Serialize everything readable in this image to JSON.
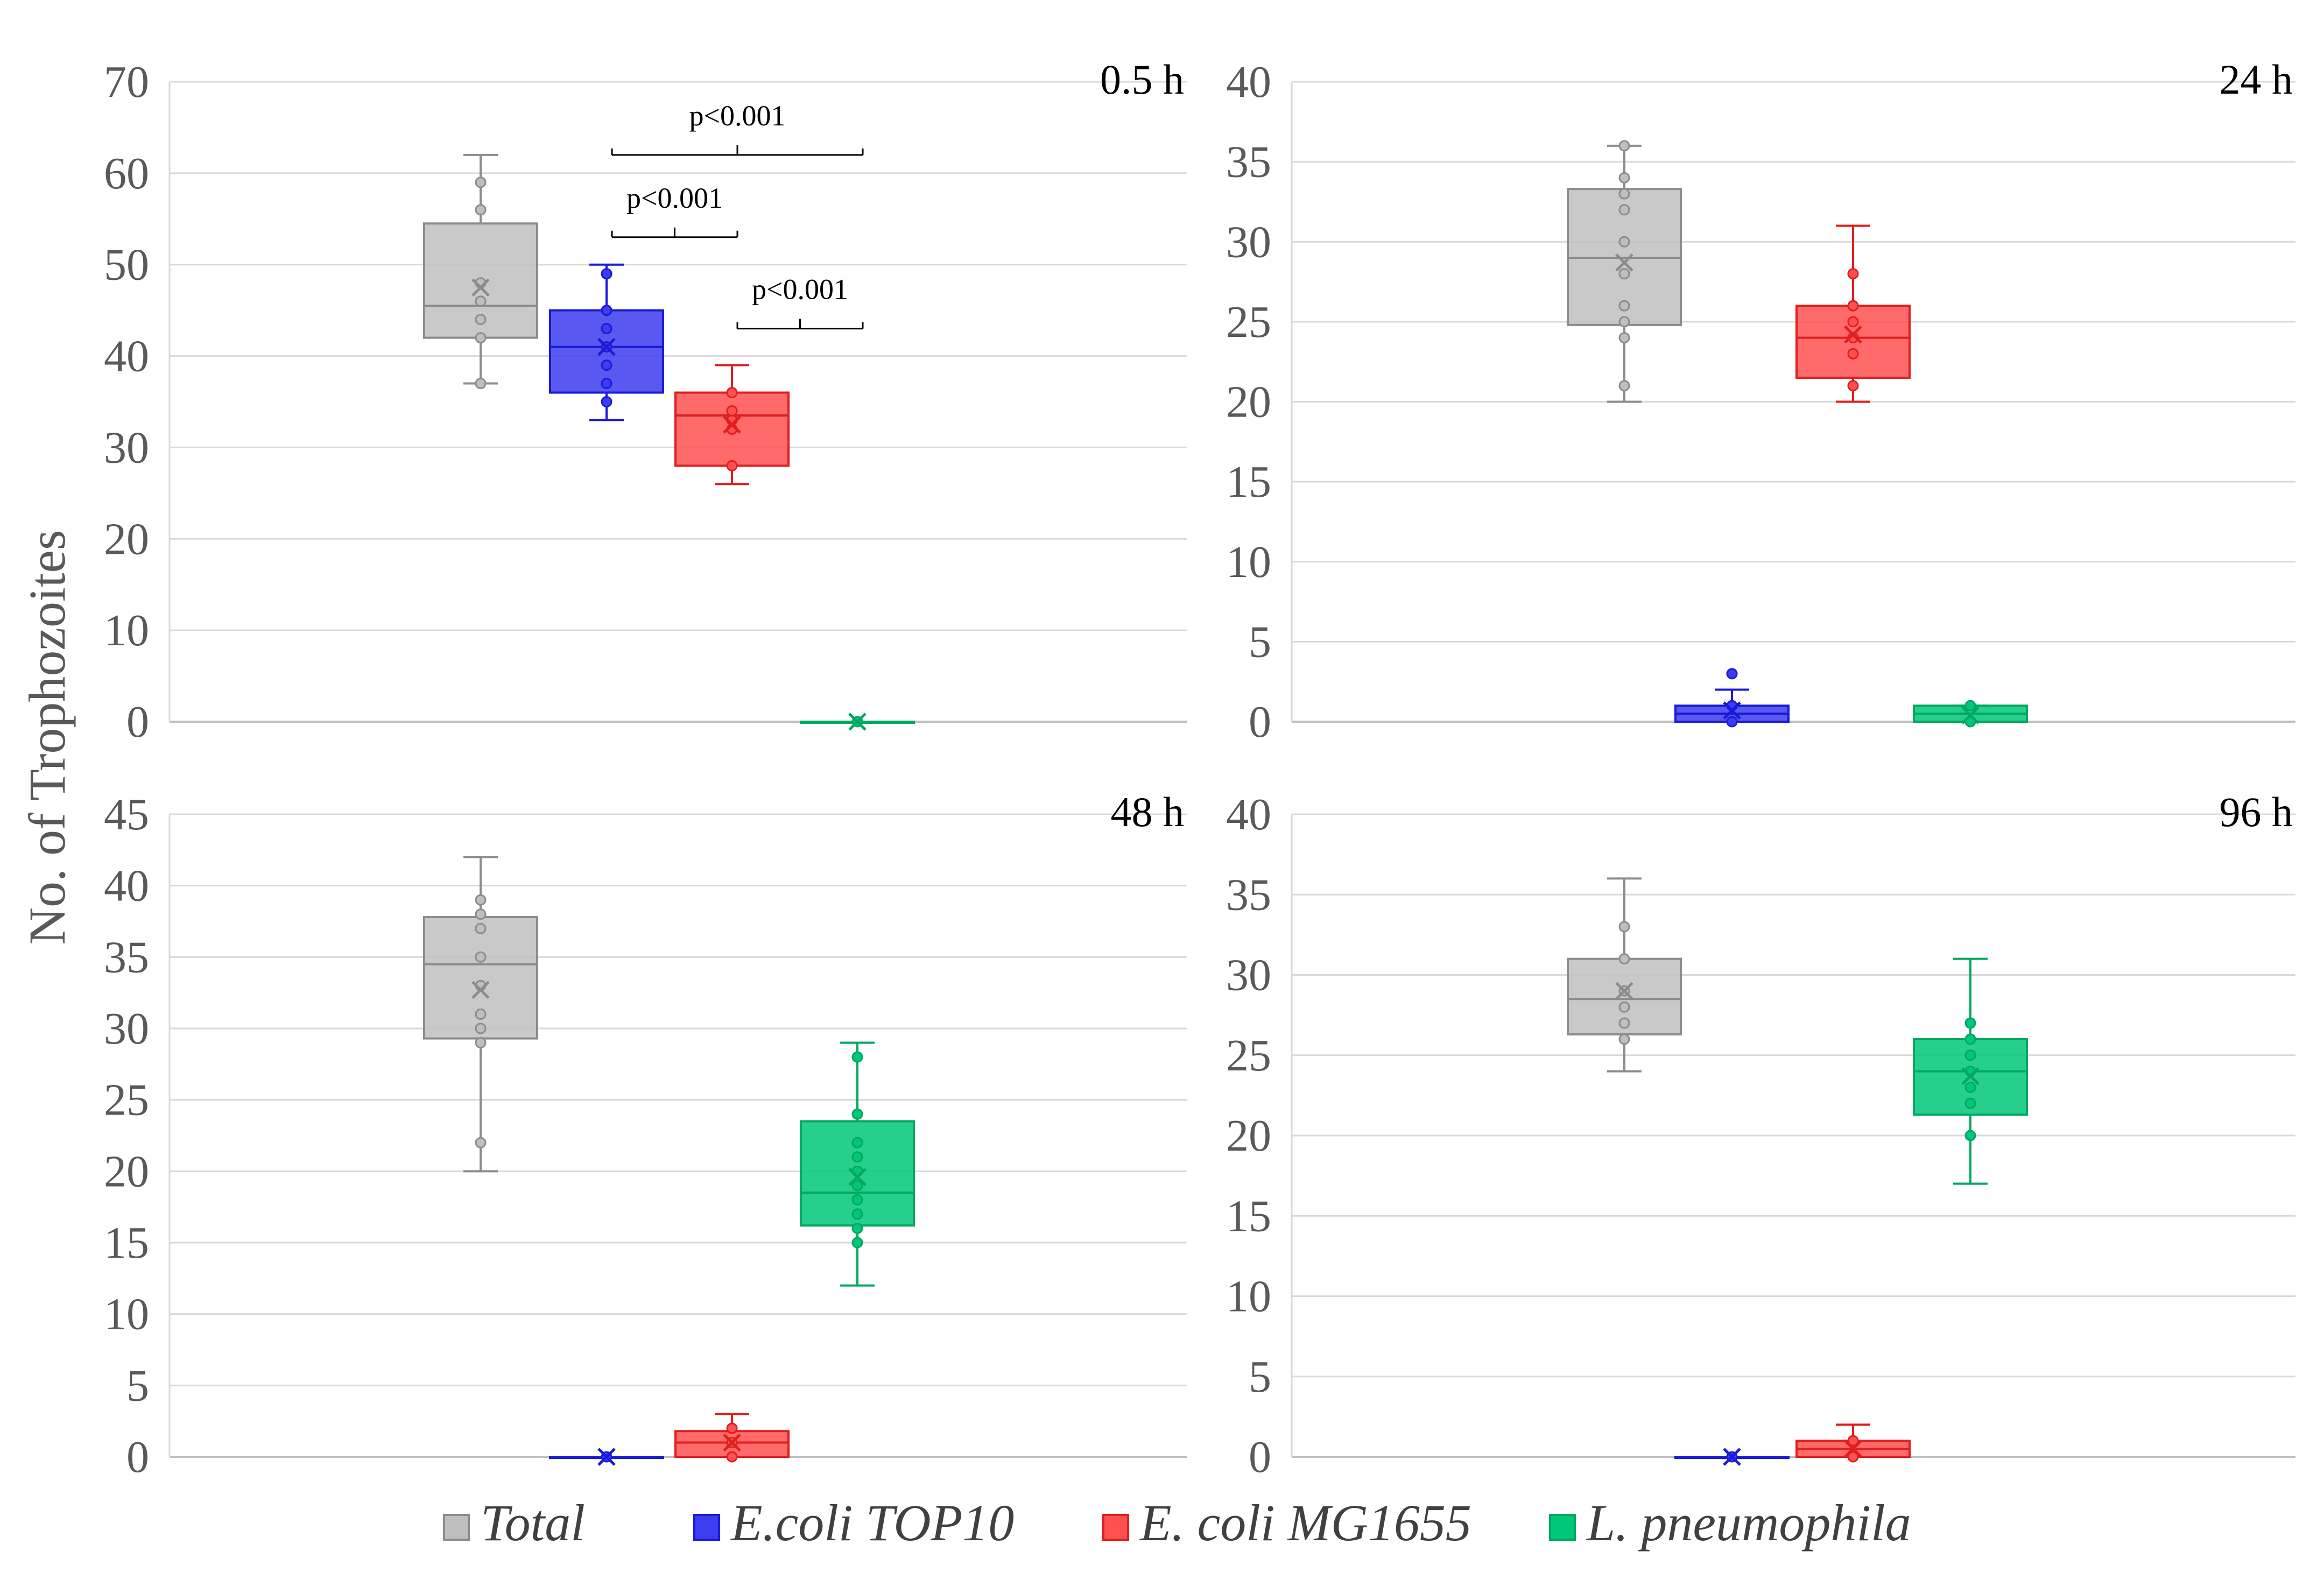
{
  "figure": {
    "ylabel": "No. of Trophozoites"
  },
  "chart_data": [
    {
      "type": "box",
      "title": "0.5 h",
      "ylim": [
        0,
        70
      ],
      "ystep": 10,
      "grid": true,
      "series": [
        {
          "name": "Total",
          "color": "#bfbfbf",
          "edge": "#8c8c8c",
          "min": 37,
          "q1": 42,
          "median": 45.5,
          "q3": 54.5,
          "max": 62,
          "mean": 47.5,
          "points": [
            37,
            42,
            44,
            46,
            48,
            56,
            59
          ]
        },
        {
          "name": "E.coli TOP10",
          "color": "#3c3cf0",
          "edge": "#1a1ad8",
          "min": 33,
          "q1": 36,
          "median": 41,
          "q3": 45,
          "max": 50,
          "mean": 41,
          "points": [
            35,
            37,
            39,
            41,
            43,
            45,
            49
          ]
        },
        {
          "name": "E. coli MG1655",
          "color": "#ff5050",
          "edge": "#e01e1e",
          "min": 26,
          "q1": 28,
          "median": 33.5,
          "q3": 36,
          "max": 39,
          "mean": 32.5,
          "points": [
            28,
            32,
            33,
            34,
            36
          ]
        },
        {
          "name": "L. pneumophila",
          "color": "#00c878",
          "edge": "#00a862",
          "min": 0,
          "q1": 0,
          "median": 0,
          "q3": 0,
          "max": 0,
          "mean": 0,
          "points": [
            0
          ]
        }
      ],
      "annotations": [
        {
          "text": "p<0.001",
          "from": 1,
          "to": 3,
          "y": 62
        },
        {
          "text": "p<0.001",
          "from": 1,
          "to": 2,
          "y": 53
        },
        {
          "text": "p<0.001",
          "from": 2,
          "to": 3,
          "y": 43
        }
      ]
    },
    {
      "type": "box",
      "title": "24 h",
      "ylim": [
        0,
        40
      ],
      "ystep": 5,
      "grid": true,
      "series": [
        {
          "name": "Total",
          "color": "#bfbfbf",
          "edge": "#8c8c8c",
          "min": 20,
          "q1": 24.8,
          "median": 29,
          "q3": 33.3,
          "max": 36,
          "mean": 28.7,
          "points": [
            21,
            24,
            25,
            26,
            28,
            30,
            32,
            33,
            34,
            36
          ]
        },
        {
          "name": "E.coli TOP10",
          "color": "#3c3cf0",
          "edge": "#1a1ad8",
          "min": 0,
          "q1": 0,
          "median": 0.5,
          "q3": 1,
          "max": 2,
          "mean": 0.7,
          "points": [
            0,
            1,
            3
          ]
        },
        {
          "name": "E. coli MG1655",
          "color": "#ff5050",
          "edge": "#e01e1e",
          "min": 20,
          "q1": 21.5,
          "median": 24,
          "q3": 26,
          "max": 31,
          "mean": 24.2,
          "points": [
            21,
            23,
            24,
            25,
            26,
            28
          ]
        },
        {
          "name": "L. pneumophila",
          "color": "#00c878",
          "edge": "#00a862",
          "min": 0,
          "q1": 0,
          "median": 0.5,
          "q3": 1,
          "max": 1,
          "mean": 0.4,
          "points": [
            0,
            1
          ]
        }
      ],
      "annotations": []
    },
    {
      "type": "box",
      "title": "48 h",
      "ylim": [
        0,
        45
      ],
      "ystep": 5,
      "grid": true,
      "series": [
        {
          "name": "Total",
          "color": "#bfbfbf",
          "edge": "#8c8c8c",
          "min": 20,
          "q1": 29.3,
          "median": 34.5,
          "q3": 37.8,
          "max": 42,
          "mean": 32.7,
          "points": [
            22,
            29,
            30,
            31,
            33,
            35,
            37,
            38,
            39
          ]
        },
        {
          "name": "E.coli TOP10",
          "color": "#3c3cf0",
          "edge": "#1a1ad8",
          "min": 0,
          "q1": 0,
          "median": 0,
          "q3": 0,
          "max": 0,
          "mean": 0,
          "points": [
            0
          ]
        },
        {
          "name": "E. coli MG1655",
          "color": "#ff5050",
          "edge": "#e01e1e",
          "min": 0,
          "q1": 0,
          "median": 1,
          "q3": 1.8,
          "max": 3,
          "mean": 1,
          "points": [
            0,
            1,
            2
          ]
        },
        {
          "name": "L. pneumophila",
          "color": "#00c878",
          "edge": "#00a862",
          "min": 12,
          "q1": 16.2,
          "median": 18.5,
          "q3": 23.5,
          "max": 29,
          "mean": 19.6,
          "points": [
            15,
            16,
            17,
            18,
            19,
            20,
            21,
            22,
            24,
            28
          ]
        }
      ],
      "annotations": []
    },
    {
      "type": "box",
      "title": "96 h",
      "ylim": [
        0,
        40
      ],
      "ystep": 5,
      "grid": true,
      "series": [
        {
          "name": "Total",
          "color": "#bfbfbf",
          "edge": "#8c8c8c",
          "min": 24,
          "q1": 26.3,
          "median": 28.5,
          "q3": 31,
          "max": 36,
          "mean": 29,
          "points": [
            26,
            27,
            28,
            29,
            31,
            33
          ]
        },
        {
          "name": "E.coli TOP10",
          "color": "#3c3cf0",
          "edge": "#1a1ad8",
          "min": 0,
          "q1": 0,
          "median": 0,
          "q3": 0,
          "max": 0,
          "mean": 0,
          "points": [
            0
          ]
        },
        {
          "name": "E. coli MG1655",
          "color": "#ff5050",
          "edge": "#e01e1e",
          "min": 0,
          "q1": 0,
          "median": 0.5,
          "q3": 1,
          "max": 2,
          "mean": 0.5,
          "points": [
            0,
            1
          ]
        },
        {
          "name": "L. pneumophila",
          "color": "#00c878",
          "edge": "#00a862",
          "min": 17,
          "q1": 21.3,
          "median": 24,
          "q3": 26,
          "max": 31,
          "mean": 23.7,
          "points": [
            20,
            22,
            23,
            24,
            25,
            26,
            27
          ]
        }
      ],
      "annotations": []
    }
  ],
  "legend": {
    "position": "bottom",
    "items": [
      {
        "label": "Total",
        "color": "#bfbfbf",
        "edge": "#8c8c8c"
      },
      {
        "label": "E.coli TOP10",
        "color": "#3c3cf0",
        "edge": "#1a1ad8"
      },
      {
        "label": "E. coli MG1655",
        "color": "#ff5050",
        "edge": "#e01e1e"
      },
      {
        "label": "L. pneumophila",
        "color": "#00c878",
        "edge": "#00a862"
      }
    ]
  }
}
